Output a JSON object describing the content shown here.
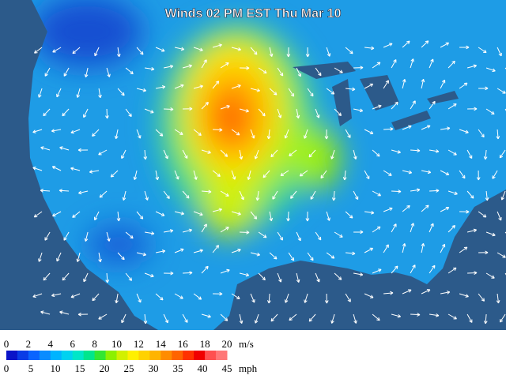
{
  "title": "Winds 02 PM EST Thu Mar 10",
  "legend": {
    "ms_labels": [
      "0",
      "2",
      "4",
      "6",
      "8",
      "10",
      "12",
      "14",
      "16",
      "18",
      "20"
    ],
    "ms_unit": "m/s",
    "mph_labels": [
      "0",
      "5",
      "10",
      "15",
      "20",
      "25",
      "30",
      "35",
      "40",
      "45"
    ],
    "mph_unit": "mph",
    "colors": [
      "#0a14c8",
      "#0a3ce6",
      "#0a64ff",
      "#0a8cff",
      "#00b4ff",
      "#00d2f0",
      "#00e6c8",
      "#00e68c",
      "#32e632",
      "#8cf000",
      "#d2f000",
      "#fff000",
      "#ffd200",
      "#ffb400",
      "#ff8c00",
      "#ff6400",
      "#ff3200",
      "#f00000",
      "#ff5050",
      "#ff7878"
    ]
  }
}
